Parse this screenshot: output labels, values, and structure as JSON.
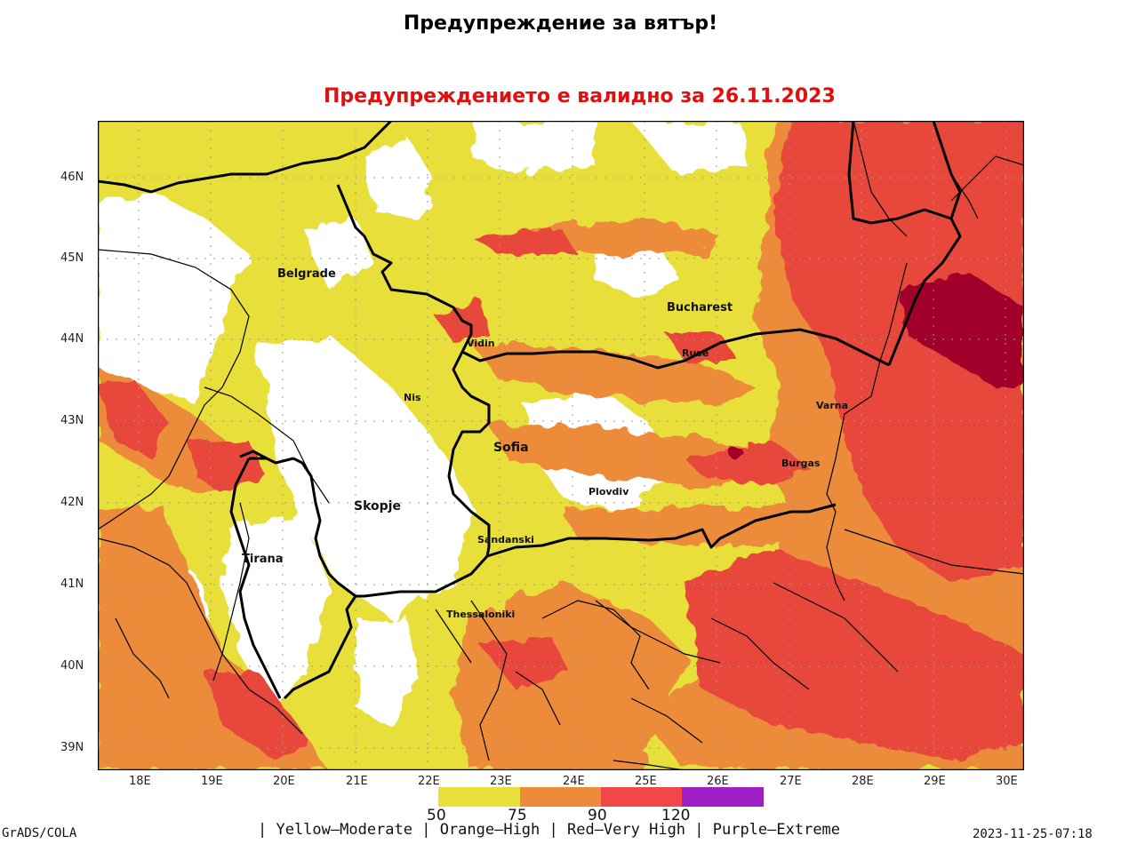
{
  "title": "Предупреждение за вятър!",
  "subtitle": "Предупреждението е валидно за 26.11.2023",
  "map": {
    "lon_ticks": [
      "18E",
      "19E",
      "20E",
      "21E",
      "22E",
      "23E",
      "24E",
      "25E",
      "26E",
      "27E",
      "28E",
      "29E",
      "30E"
    ],
    "lat_ticks": [
      "46N",
      "45N",
      "44N",
      "43N",
      "42N",
      "41N",
      "40N",
      "39N"
    ],
    "cities": {
      "belgrade": "Belgrade",
      "bucharest": "Bucharest",
      "vidin": "Vidin",
      "ruse": "Ruse",
      "nis": "Nis",
      "varna": "Varna",
      "sofia": "Sofia",
      "burgas": "Burgas",
      "plovdiv": "Plovdiv",
      "skopje": "Skopje",
      "sandanski": "Sandanski",
      "tirana": "Tirana",
      "thessaloniki": "Thessaloniki"
    },
    "colors": {
      "background": "#ffffff",
      "moderate": "#e8df3a",
      "high": "#ec8c3a",
      "very_high": "#e8463a",
      "extreme": "#a0002a",
      "border": "#000000"
    }
  },
  "legend": {
    "thresholds": [
      "50",
      "75",
      "90",
      "120"
    ],
    "colors": [
      "#e8df3a",
      "#ec8c3a",
      "#f04848",
      "#a020c8"
    ],
    "text": "| Yellow—Moderate | Orange—High | Red—Very High | Purple—Extreme"
  },
  "footer": {
    "credit": "GrADS/COLA",
    "timestamp": "2023-11-25-07:18"
  }
}
